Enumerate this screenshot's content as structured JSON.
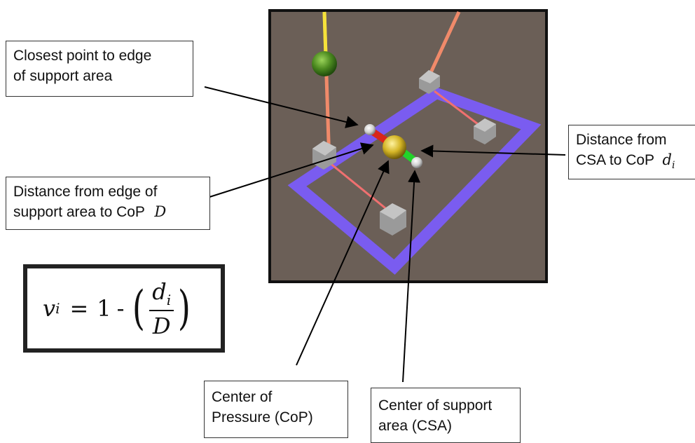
{
  "labels": {
    "closest_point": {
      "line1": "Closest point to edge",
      "line2": "of support area"
    },
    "distance_edge": {
      "line1": "Distance from edge of",
      "line2": "support area to CoP",
      "var": "D"
    },
    "distance_csa": {
      "line1": "Distance from",
      "line2": "CSA to CoP",
      "var": "d",
      "sub": "i"
    },
    "cop": {
      "line1": "Center of",
      "line2": "Pressure (CoP)"
    },
    "csa": {
      "line1": "Center of support",
      "line2": "area (CSA)"
    }
  },
  "formula": {
    "lhs_var": "v",
    "lhs_sub": "i",
    "eq": "=",
    "one": "1",
    "minus": "-",
    "open_paren": "(",
    "num_var": "d",
    "num_sub": "i",
    "den_var": "D",
    "close_paren": ")"
  },
  "colors": {
    "scene_bg": "#6b5f57",
    "support_outline": "#7a5cf0",
    "com_sphere": "#4c8a20",
    "cop_sphere": "#d4b526",
    "edge_segment": "#d8261a",
    "csa_segment": "#22d42a",
    "leg_line": "#f08a6a",
    "foot_cube": "#b0b0b0"
  }
}
